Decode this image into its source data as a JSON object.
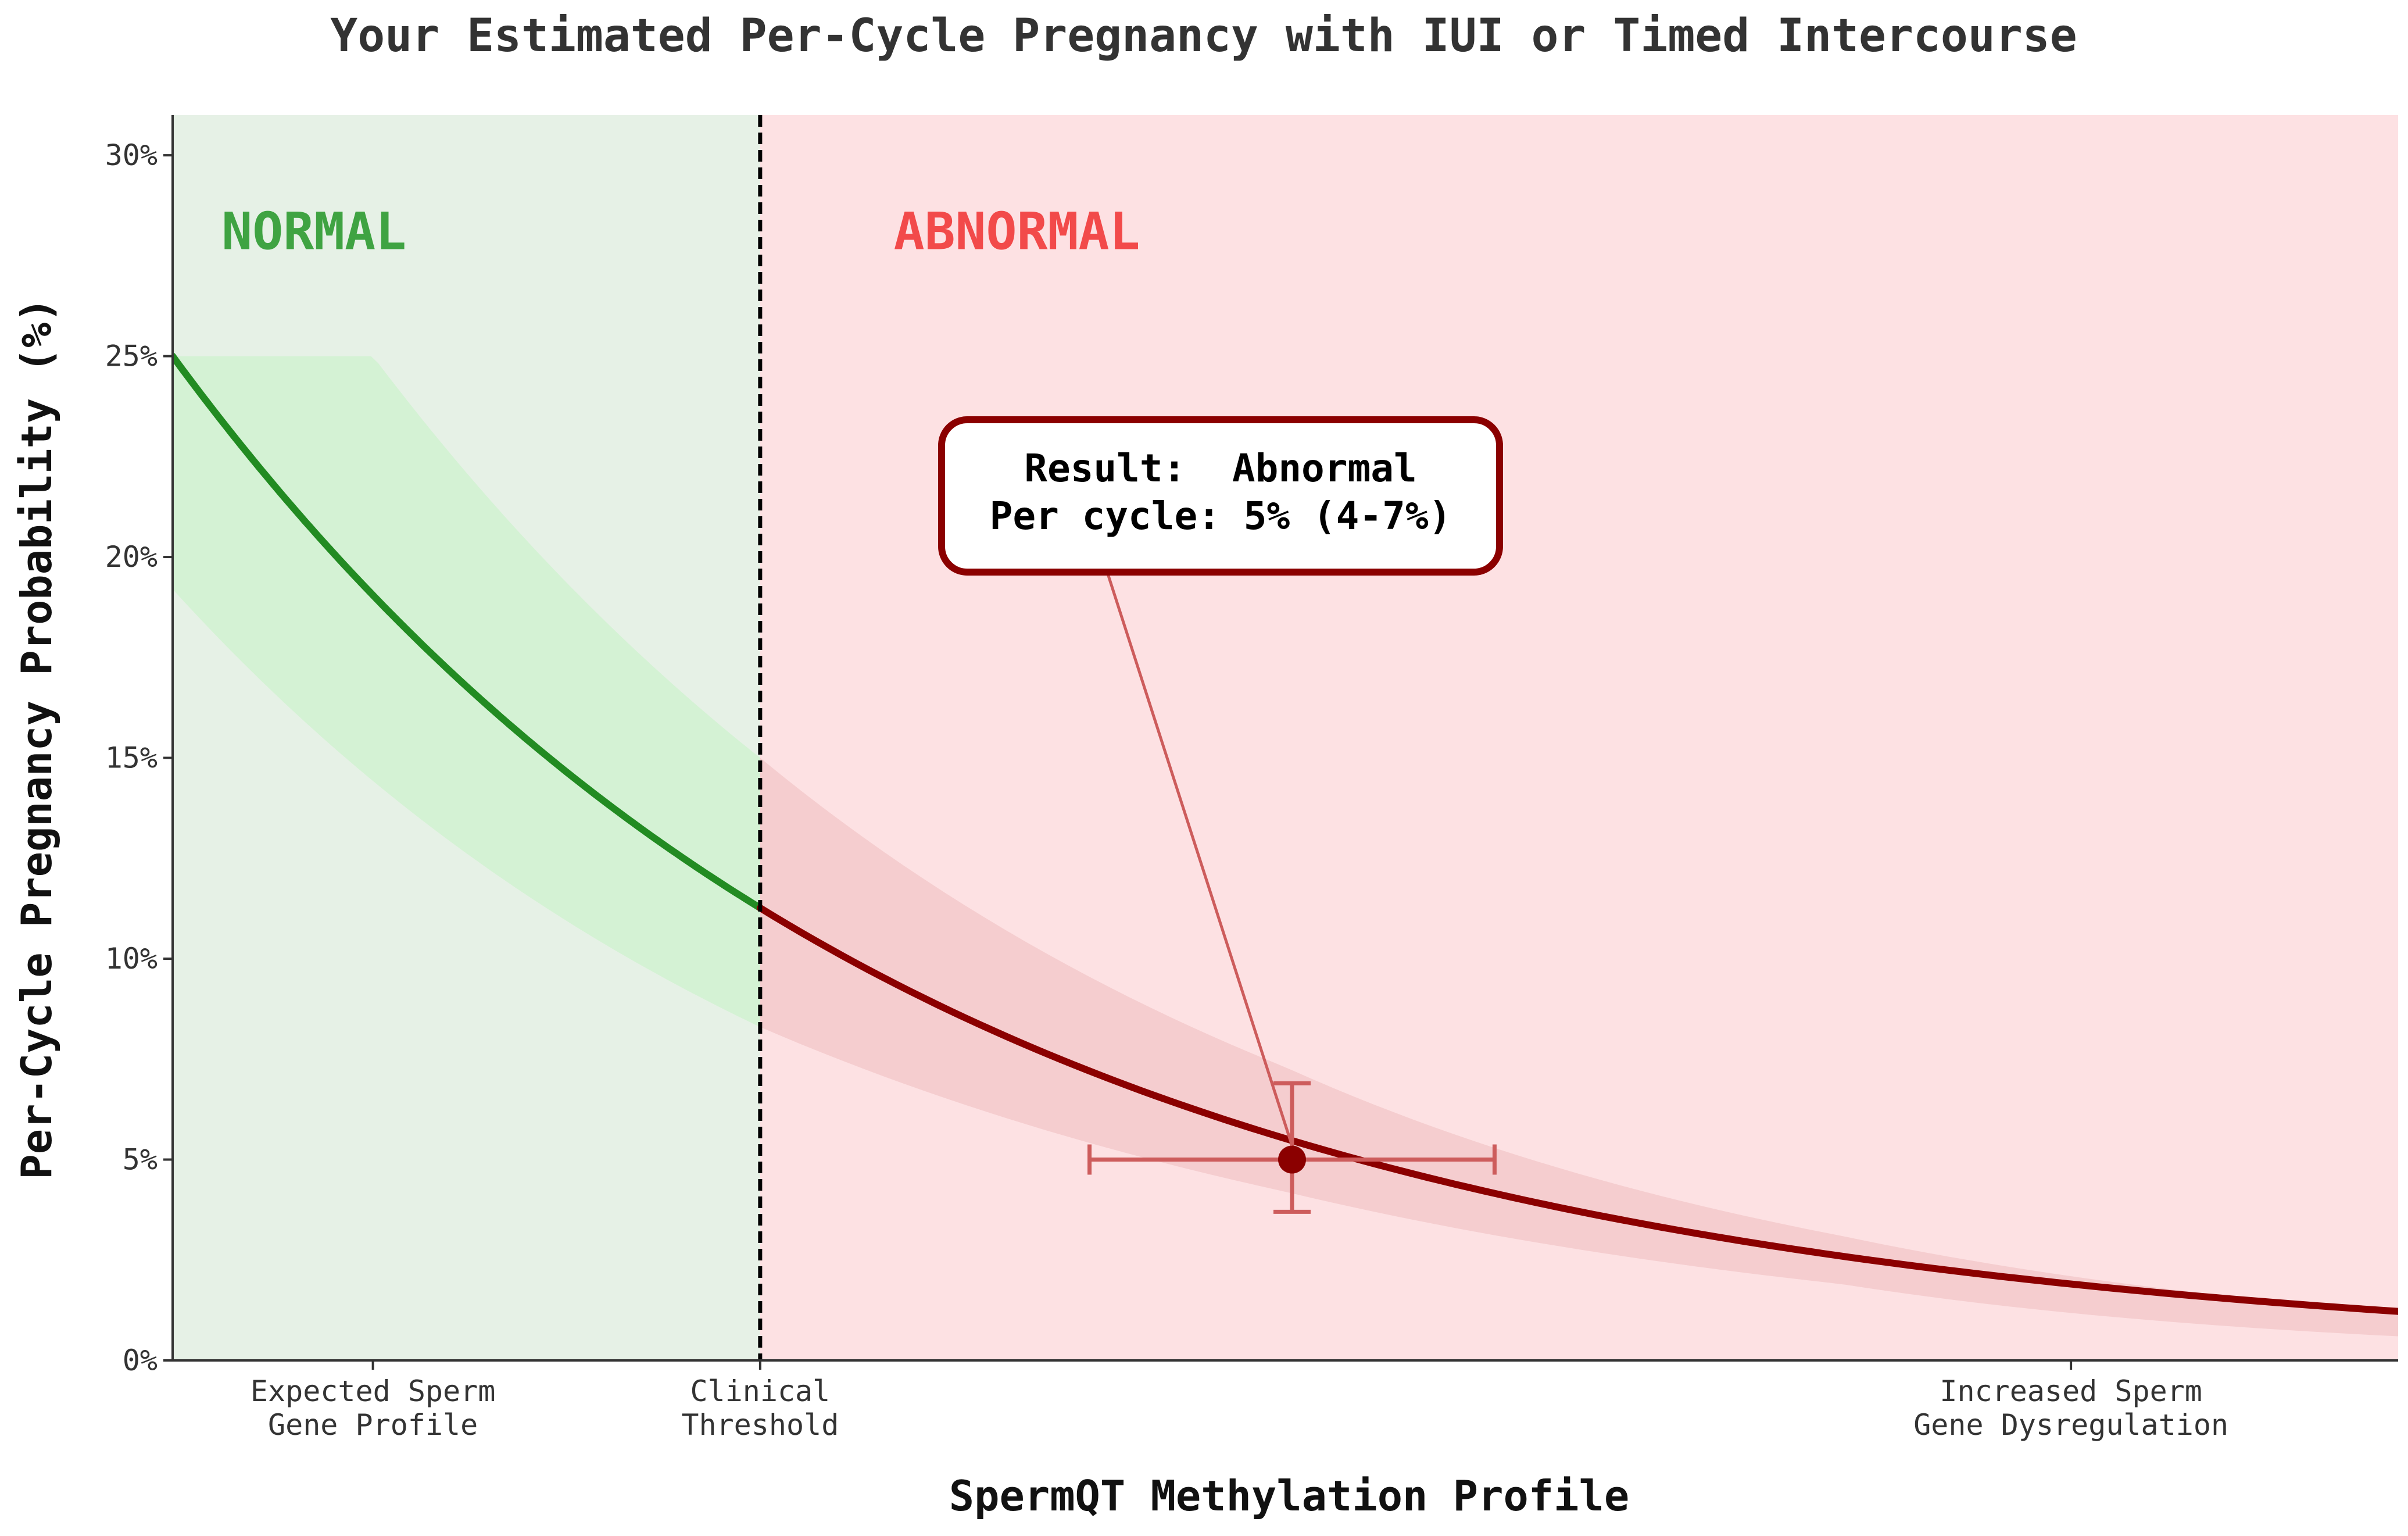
{
  "chart_data": {
    "type": "line",
    "title": "Your Estimated Per-Cycle Pregnancy with IUI or Timed Intercourse",
    "xlabel": "SpermQT Methylation Profile",
    "ylabel": "Per-Cycle Pregnancy Probability (%)",
    "xlim": [
      0,
      1
    ],
    "ylim": [
      0,
      31
    ],
    "y_ticks": [
      0,
      5,
      10,
      15,
      20,
      25,
      30
    ],
    "y_tick_labels": [
      "0%",
      "5%",
      "10%",
      "15%",
      "20%",
      "25%",
      "30%"
    ],
    "x_ticks": [
      0.09,
      0.264,
      0.853
    ],
    "x_tick_labels": [
      [
        "Expected Sperm",
        "Gene Profile"
      ],
      [
        "Clinical",
        "Threshold"
      ],
      [
        "Increased Sperm",
        "Gene Dysregulation"
      ]
    ],
    "threshold_x": 0.264,
    "regions": [
      {
        "label": "NORMAL",
        "x_range": [
          0,
          0.264
        ],
        "fill_color": "#e6f1e6",
        "label_color": "#3fa342"
      },
      {
        "label": "ABNORMAL",
        "x_range": [
          0.264,
          1
        ],
        "fill_color": "#fde1e3",
        "label_color": "#f24a4a"
      }
    ],
    "curve": {
      "model": "exponential decay",
      "y_at_x0": 25,
      "decay_rate": 3.02,
      "normal_color": "#228b22",
      "abnormal_color": "#8b0000",
      "band_normal_color": "#d4f2d4",
      "band_abnormal_color": "#f5cdcf",
      "band_lower": [
        {
          "x": 0,
          "y": 19.2
        },
        {
          "x": 0.264,
          "y": 8.3
        },
        {
          "x": 0.5,
          "y": 4.2
        },
        {
          "x": 0.75,
          "y": 1.9
        },
        {
          "x": 1,
          "y": 0.6
        }
      ],
      "band_upper": [
        {
          "x": 0,
          "y": 25
        },
        {
          "x": 0.09,
          "y": 25
        },
        {
          "x": 0.264,
          "y": 15
        },
        {
          "x": 0.5,
          "y": 7.3
        },
        {
          "x": 0.75,
          "y": 3.1
        },
        {
          "x": 1,
          "y": 1.2
        }
      ]
    },
    "result_point": {
      "x": 0.503,
      "y": 5,
      "y_err": [
        3.7,
        6.9
      ],
      "x_err": [
        0.412,
        0.594
      ],
      "marker_color": "#8b0000",
      "errorbar_color": "#cd5c5c"
    },
    "annotation": {
      "lines": [
        "Result:  Abnormal",
        "Per cycle: 5% (4-7%)"
      ],
      "border_color": "#8b0000"
    }
  }
}
